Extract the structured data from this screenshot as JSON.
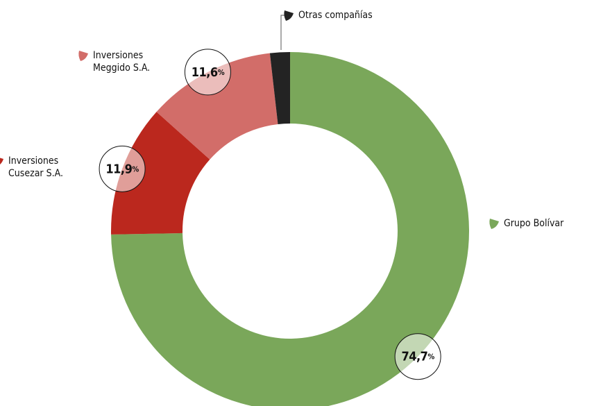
{
  "chart_data": {
    "type": "pie",
    "categories": [
      "Grupo Bolívar",
      "Inversiones Cusezar S.A.",
      "Inversiones Meggido S.A.",
      "Otras compañías"
    ],
    "values": [
      74.7,
      11.9,
      11.6,
      1.8
    ],
    "value_labels": [
      "74,7%",
      "11,9%",
      "11,6%",
      null
    ],
    "colors": [
      "#7aa75a",
      "#bb281e",
      "#d26d69",
      "#232323"
    ]
  }
}
